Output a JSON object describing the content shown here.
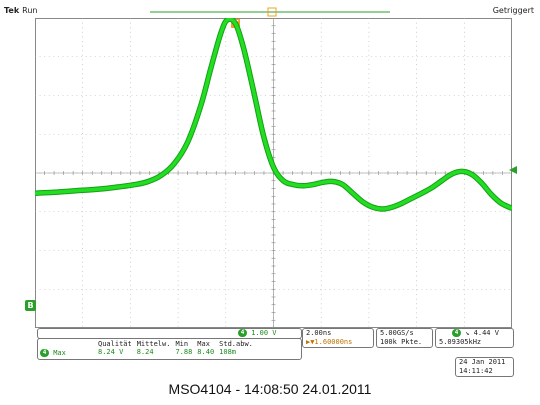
{
  "header": {
    "brand": "Tek",
    "run_state": "Run",
    "trigger_state": "Getriggert"
  },
  "markers": {
    "trigger_position": "T",
    "left_ref": "B"
  },
  "channel": {
    "badge": "4",
    "volts_per_div": "1.00 V"
  },
  "timebase": {
    "time_per_div": "2.00ns",
    "delay": "▶▼1.60000ns",
    "sample_rate": "5.00GS/s",
    "record_length": "100k Pkte."
  },
  "trigger": {
    "badge": "4",
    "slope": "↘",
    "level": "4.44 V",
    "frequency": "5.09305kHz"
  },
  "measurements": {
    "headers": [
      "Qualität",
      "Mittelw.",
      "Min",
      "Max",
      "Std.abw."
    ],
    "row": {
      "badge": "4",
      "label": "Max",
      "values": [
        "8.24 V",
        "8.24",
        "7.88",
        "8.40",
        "108m"
      ]
    }
  },
  "datetime": {
    "date": "24 Jan  2011",
    "time": "14:11:42"
  },
  "caption": "MSO4104 - 14:08:50   24.01.2011",
  "colors": {
    "trace": "#22dd22",
    "trace_edge": "#16a016",
    "grid": "#b0b0b0",
    "accent_orange": "#f0a020"
  },
  "waveform": [
    [
      0.0,
      -0.52
    ],
    [
      0.5,
      -0.5
    ],
    [
      1.0,
      -0.47
    ],
    [
      1.5,
      -0.44
    ],
    [
      2.0,
      -0.41
    ],
    [
      2.5,
      -0.36
    ],
    [
      3.0,
      -0.3
    ],
    [
      3.4,
      -0.22
    ],
    [
      3.8,
      -0.06
    ],
    [
      4.2,
      0.25
    ],
    [
      4.6,
      0.8
    ],
    [
      5.0,
      1.75
    ],
    [
      5.3,
      2.7
    ],
    [
      5.6,
      3.6
    ],
    [
      5.8,
      3.95
    ],
    [
      6.05,
      3.85
    ],
    [
      6.3,
      3.2
    ],
    [
      6.6,
      2.1
    ],
    [
      6.9,
      0.95
    ],
    [
      7.2,
      0.15
    ],
    [
      7.5,
      -0.2
    ],
    [
      7.8,
      -0.3
    ],
    [
      8.1,
      -0.33
    ],
    [
      8.4,
      -0.3
    ],
    [
      8.7,
      -0.24
    ],
    [
      9.0,
      -0.22
    ],
    [
      9.3,
      -0.3
    ],
    [
      9.6,
      -0.52
    ],
    [
      9.9,
      -0.74
    ],
    [
      10.2,
      -0.88
    ],
    [
      10.5,
      -0.93
    ],
    [
      10.8,
      -0.88
    ],
    [
      11.1,
      -0.78
    ],
    [
      11.4,
      -0.65
    ],
    [
      11.7,
      -0.52
    ],
    [
      12.0,
      -0.38
    ],
    [
      12.3,
      -0.2
    ],
    [
      12.6,
      -0.03
    ],
    [
      12.9,
      0.04
    ],
    [
      13.2,
      -0.03
    ],
    [
      13.5,
      -0.25
    ],
    [
      13.8,
      -0.55
    ],
    [
      14.1,
      -0.78
    ],
    [
      14.4,
      -0.9
    ]
  ]
}
